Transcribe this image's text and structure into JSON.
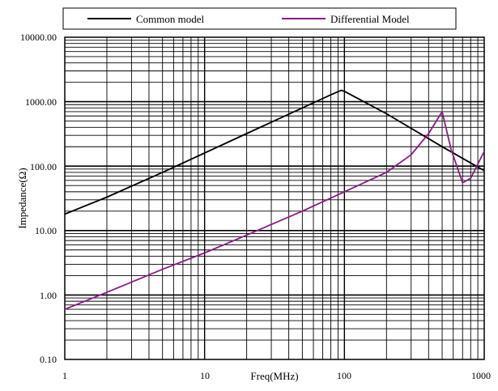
{
  "chart_data": {
    "type": "line",
    "title": "",
    "xlabel": "Freq(MHz)",
    "ylabel": "Impedance(Ω)",
    "x_scale": "log",
    "y_scale": "log",
    "xlim": [
      1,
      1000
    ],
    "ylim": [
      0.1,
      10000
    ],
    "grid": true,
    "legend_position": "top",
    "x_tick_labels": [
      "1",
      "10",
      "100",
      "1000"
    ],
    "y_tick_labels": [
      "0.10",
      "1.00",
      "10.00",
      "100.00",
      "1000.00",
      "10000.00"
    ],
    "series": [
      {
        "name": "Common model",
        "color": "#000000",
        "x": [
          1,
          2,
          5,
          10,
          20,
          50,
          80,
          95,
          100,
          200,
          500,
          1000
        ],
        "y": [
          18,
          33,
          80,
          160,
          320,
          800,
          1280,
          1500,
          1450,
          650,
          200,
          85
        ]
      },
      {
        "name": "Differential Model",
        "color": "#8b1a89",
        "x": [
          1,
          2,
          5,
          10,
          20,
          50,
          100,
          200,
          300,
          400,
          500,
          580,
          700,
          800,
          1000
        ],
        "y": [
          0.6,
          1.1,
          2.5,
          4.5,
          8.5,
          20,
          40,
          80,
          150,
          320,
          700,
          180,
          55,
          65,
          170
        ]
      }
    ]
  }
}
